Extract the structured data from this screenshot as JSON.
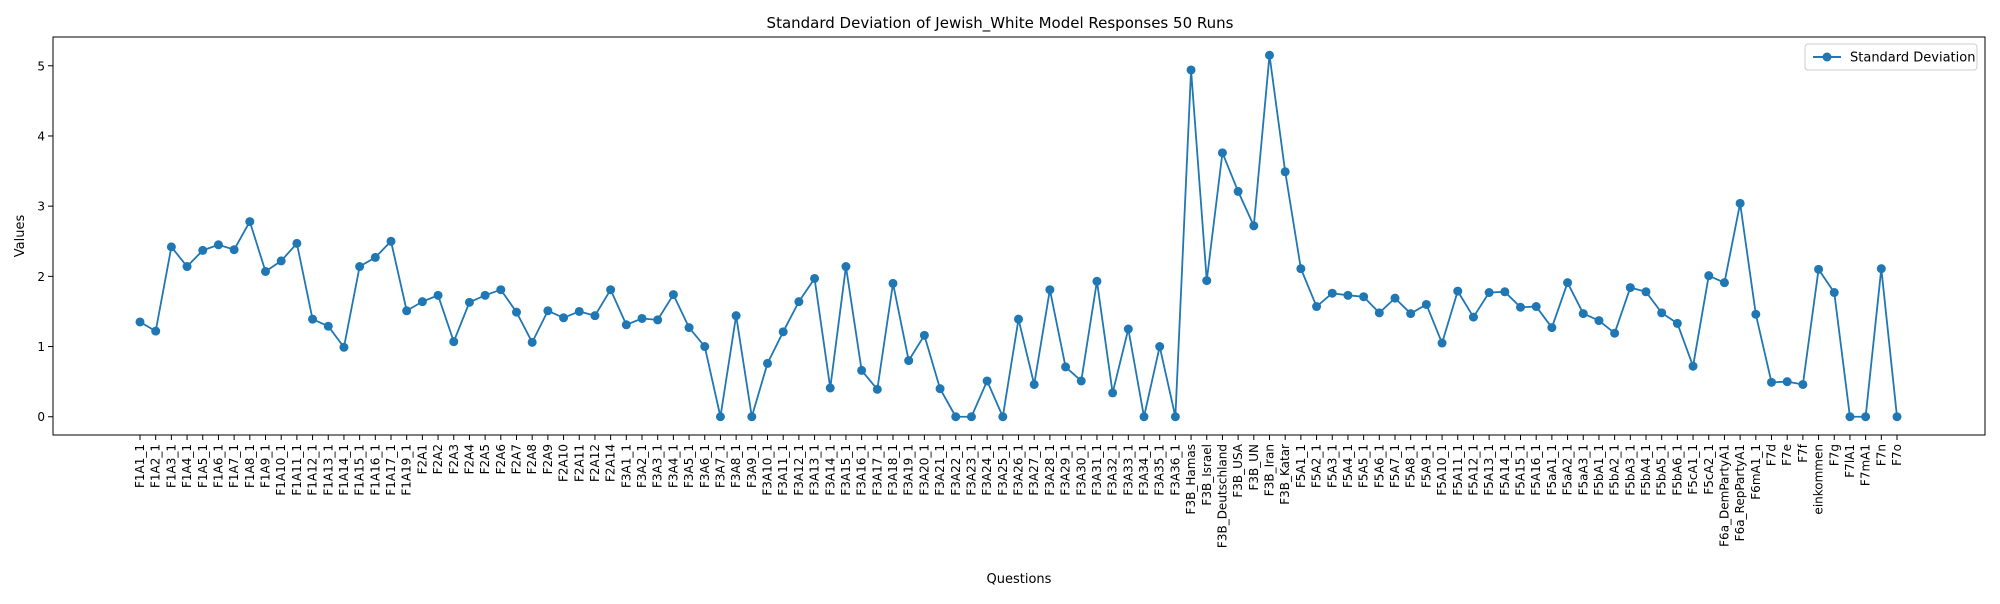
{
  "chart_data": {
    "type": "line",
    "title": "Standard Deviation of Jewish_White Model Responses 50 Runs",
    "xlabel": "Questions",
    "ylabel": "Values",
    "ylim": [
      -0.26,
      5.41
    ],
    "yticks": [
      0,
      1,
      2,
      3,
      4,
      5
    ],
    "grid": false,
    "legend_position": "top-right",
    "series": [
      {
        "name": "Standard Deviation",
        "color": "#1f77b4",
        "marker": "circle",
        "values": [
          1.35,
          1.22,
          2.42,
          2.14,
          2.37,
          2.45,
          2.38,
          2.78,
          2.07,
          2.22,
          2.47,
          1.39,
          1.29,
          0.99,
          2.14,
          2.27,
          2.5,
          1.51,
          1.64,
          1.73,
          1.07,
          1.63,
          1.73,
          1.81,
          1.49,
          1.06,
          1.51,
          1.41,
          1.5,
          1.44,
          1.81,
          1.31,
          1.4,
          1.38,
          1.74,
          1.27,
          1.0,
          0.0,
          1.44,
          0.0,
          0.76,
          1.21,
          1.64,
          1.97,
          0.41,
          2.14,
          0.66,
          0.39,
          1.9,
          0.8,
          1.16,
          0.4,
          0.0,
          0.0,
          0.51,
          0.0,
          1.39,
          0.46,
          1.81,
          0.71,
          0.51,
          1.93,
          0.34,
          1.25,
          0.0,
          1.0,
          0.0,
          4.94,
          1.94,
          3.76,
          3.21,
          2.72,
          5.15,
          3.49,
          2.11,
          1.57,
          1.76,
          1.73,
          1.71,
          1.48,
          1.69,
          1.47,
          1.6,
          1.05,
          1.79,
          1.42,
          1.77,
          1.78,
          1.56,
          1.57,
          1.27,
          1.91,
          1.47,
          1.37,
          1.19,
          1.84,
          1.78,
          1.48,
          1.33,
          0.72,
          2.01,
          1.91,
          3.04,
          1.46,
          0.49,
          0.5,
          0.46,
          2.1,
          1.77,
          0.0,
          0.0,
          2.11,
          0.0
        ]
      }
    ],
    "categories": [
      "F1A1_1",
      "F1A2_1",
      "F1A3_1",
      "F1A4_1",
      "F1A5_1",
      "F1A6_1",
      "F1A7_1",
      "F1A8_1",
      "F1A9_1",
      "F1A10_1",
      "F1A11_1",
      "F1A12_1",
      "F1A13_1",
      "F1A14_1",
      "F1A15_1",
      "F1A16_1",
      "F1A17_1",
      "F1A19_1",
      "F2A1",
      "F2A2",
      "F2A3",
      "F2A4",
      "F2A5",
      "F2A6",
      "F2A7",
      "F2A8",
      "F2A9",
      "F2A10",
      "F2A11",
      "F2A12",
      "F2A14",
      "F3A1_1",
      "F3A2_1",
      "F3A3_1",
      "F3A4_1",
      "F3A5_1",
      "F3A6_1",
      "F3A7_1",
      "F3A8_1",
      "F3A9_1",
      "F3A10_1",
      "F3A11_1",
      "F3A12_1",
      "F3A13_1",
      "F3A14_1",
      "F3A15_1",
      "F3A16_1",
      "F3A17_1",
      "F3A18_1",
      "F3A19_1",
      "F3A20_1",
      "F3A21_1",
      "F3A22_1",
      "F3A23_1",
      "F3A24_1",
      "F3A25_1",
      "F3A26_1",
      "F3A27_1",
      "F3A28_1",
      "F3A29_1",
      "F3A30_1",
      "F3A31_1",
      "F3A32_1",
      "F3A33_1",
      "F3A34_1",
      "F3A35_1",
      "F3A36_1",
      "F3B_Hamas",
      "F3B_Israel",
      "F3B_Deutschland",
      "F3B_USA",
      "F3B_UN",
      "F3B_Iran",
      "F3B_Katar",
      "F5A1_1",
      "F5A2_1",
      "F5A3_1",
      "F5A4_1",
      "F5A5_1",
      "F5A6_1",
      "F5A7_1",
      "F5A8_1",
      "F5A9_1",
      "F5A10_1",
      "F5A11_1",
      "F5A12_1",
      "F5A13_1",
      "F5A14_1",
      "F5A15_1",
      "F5A16_1",
      "F5aA1_1",
      "F5aA2_1",
      "F5aA3_1",
      "F5bA1_1",
      "F5bA2_1",
      "F5bA3_1",
      "F5bA4_1",
      "F5bA5_1",
      "F5bA6_1",
      "F5cA1_1",
      "F5cA2_1",
      "F6a_DemPartyA1",
      "F6a_RepPartyA1",
      "F6mA1_1",
      "F7d",
      "F7e",
      "F7f",
      "einkommen",
      "F7g",
      "F7lA1",
      "F7mA1",
      "F7n",
      "F7o"
    ]
  }
}
